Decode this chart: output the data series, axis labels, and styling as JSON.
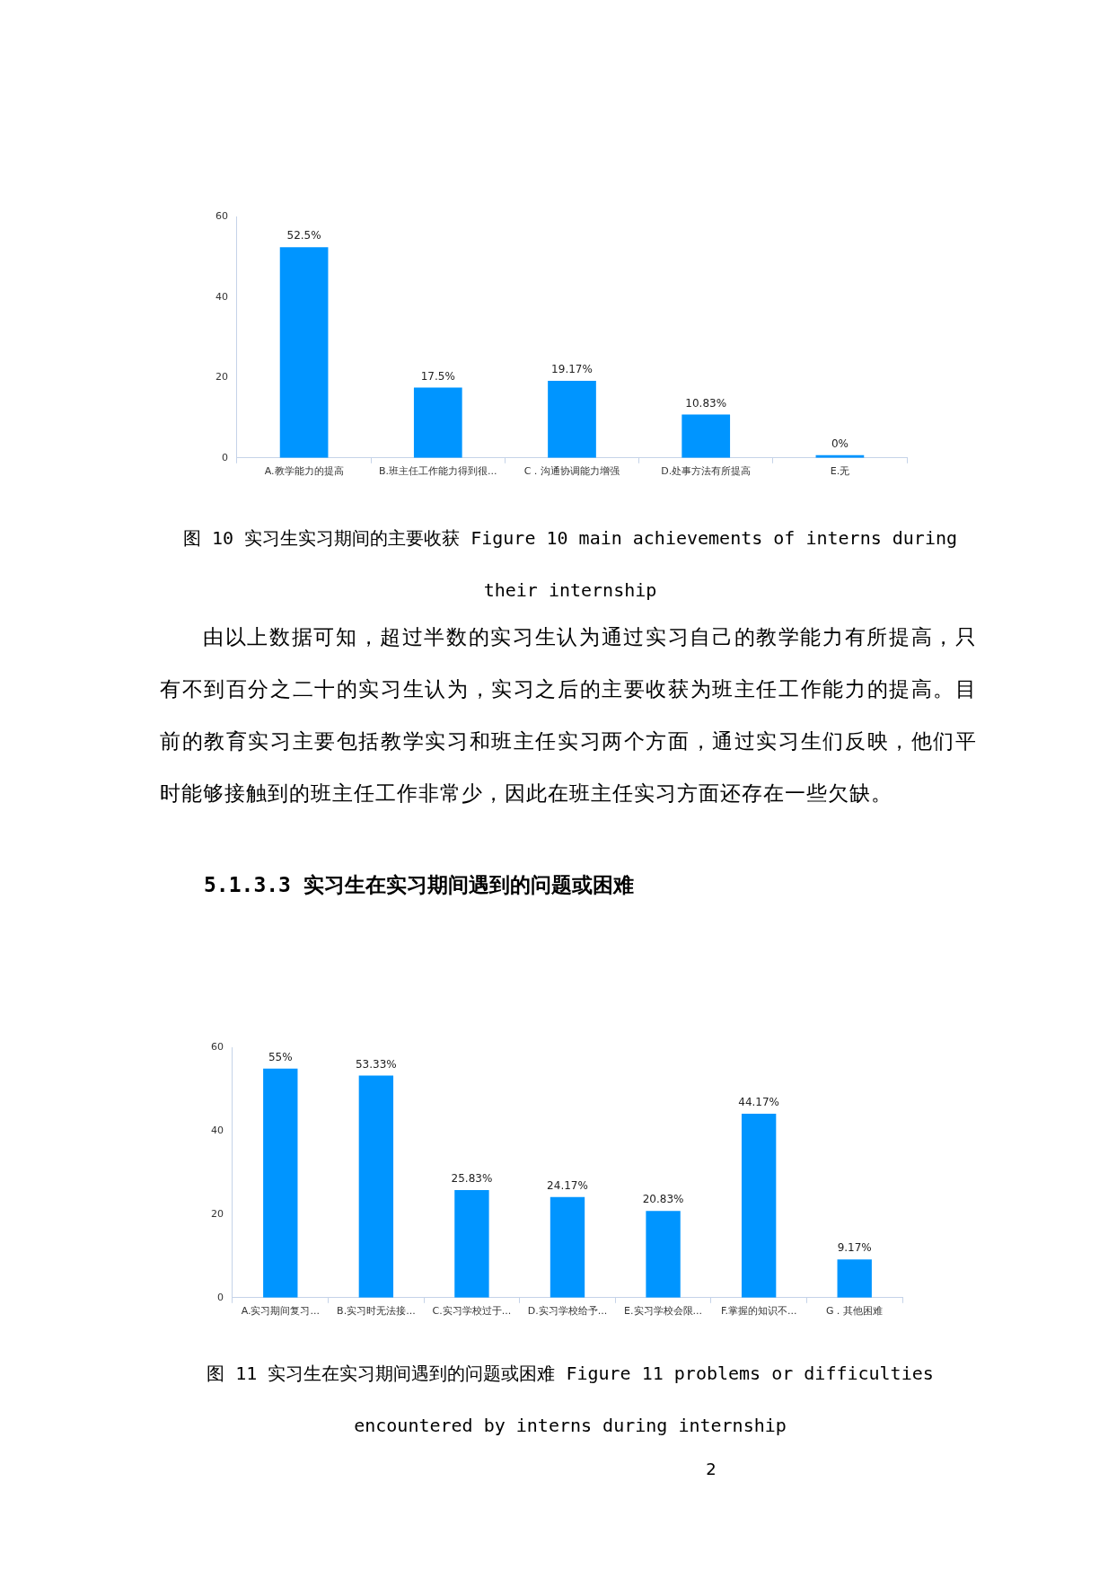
{
  "chart_data": [
    {
      "type": "bar",
      "categories": [
        "A.教学能力的提高",
        "B.班主任工作能力得到很...",
        "C．沟通协调能力增强",
        "D.处事方法有所提高",
        "E.无"
      ],
      "values": [
        52.5,
        17.5,
        19.17,
        10.83,
        0
      ],
      "color": "#0095ff",
      "value_labels": [
        "52.5%",
        "17.5%",
        "19.17%",
        "10.83%",
        "0%"
      ],
      "ylim": [
        0,
        60
      ],
      "yticks": [
        0,
        20,
        40,
        60
      ],
      "grid": false,
      "legend": false,
      "annotations": [
        "图 10 实习生实习期间的主要收获 Figure 10 main achievements of interns during their internship",
        "由以上数据可知，超过半数的实习生认为通过实习自己的教学能力有所提高，只有不到百分之二十的实习生认为，实习之后的主要收获为班主任工作能力的提高。目前的教育实习主要包括教学实习和班主任实习两个方面，通过实习生们反映，他们平时能够接触到的班主任工作非常少，因此在班主任实习方面还存在一些欠缺。"
      ]
    },
    {
      "type": "bar",
      "title": "5.1.3.3 实习生在实习期间遇到的问题或困难",
      "categories": [
        "A.实习期间复习...",
        "B.实习时无法接...",
        "C.实习学校过于...",
        "D.实习学校给予...",
        "E.实习学校会限...",
        "F.掌握的知识不...",
        "G．其他困难"
      ],
      "values": [
        55,
        53.33,
        25.83,
        24.17,
        20.83,
        44.17,
        9.17
      ],
      "color": "#0095ff",
      "value_labels": [
        "55%",
        "53.33%",
        "25.83%",
        "24.17%",
        "20.83%",
        "44.17%",
        "9.17%"
      ],
      "ylim": [
        0,
        60
      ],
      "yticks": [
        0,
        20,
        40,
        60
      ],
      "grid": false,
      "legend": false,
      "annotations": [
        "图 11 实习生在实习期间遇到的问题或困难 Figure 11 problems or difficulties encountered by interns during internship",
        "2"
      ]
    }
  ]
}
